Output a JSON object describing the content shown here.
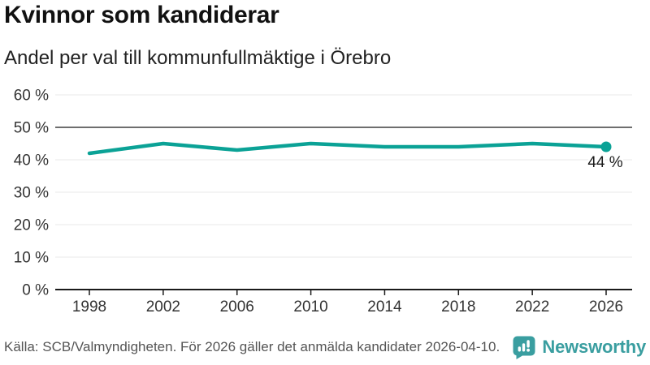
{
  "chart_data": {
    "type": "line",
    "title": "Kvinnor som kandiderar",
    "subtitle": "Andel per val till kommunfullmäktige i Örebro",
    "x": [
      1998,
      2002,
      2006,
      2010,
      2014,
      2018,
      2022,
      2026
    ],
    "series": [
      {
        "values": [
          42,
          45,
          43,
          45,
          44,
          44,
          45,
          44
        ]
      }
    ],
    "end_label": "44 %",
    "ylim": [
      0,
      60
    ],
    "ytick_step": 10,
    "ytick_suffix": " %",
    "reference_line": 50,
    "grid": true,
    "legend_position": "none",
    "colors": {
      "line": "#0ba296",
      "marker": "#0ba296",
      "reference_line": "#6e6e6e",
      "gridline": "#e8e8e8",
      "axis": "#1a1a1a",
      "tick_label": "#333333",
      "end_label": "#1a1a1a"
    }
  },
  "footer": {
    "source": "Källa: SCB/Valmyndigheten. För 2026 gäller det anmälda kandidater 2026-04-10.",
    "brand": "Newsworthy",
    "brand_color": "#3a9ea0"
  }
}
